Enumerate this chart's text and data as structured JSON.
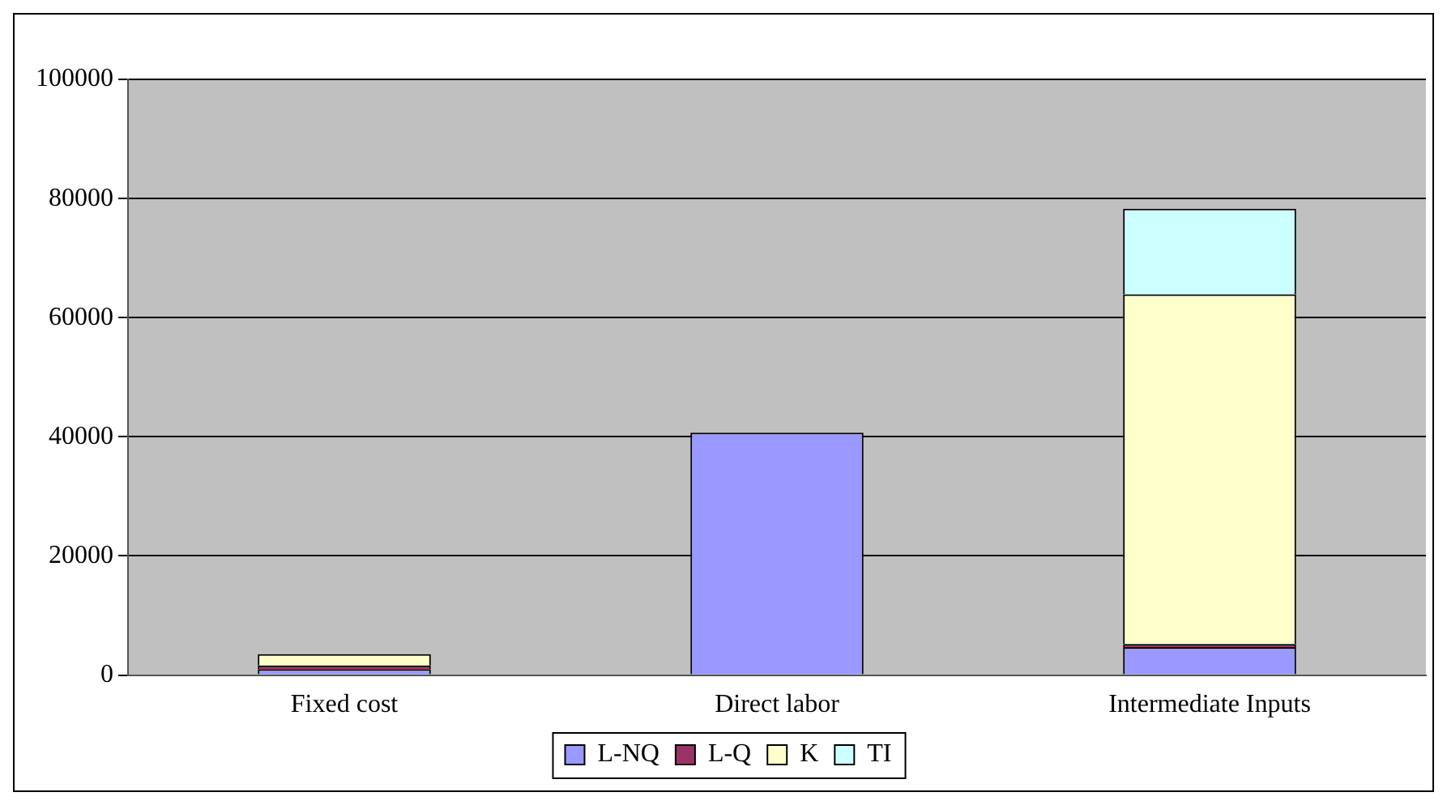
{
  "chart_data": {
    "type": "bar",
    "stacked": true,
    "categories": [
      "Fixed cost",
      "Direct labor",
      "Intermediate Inputs"
    ],
    "series": [
      {
        "name": "L-NQ",
        "color": "#9999ff",
        "values": [
          1000,
          40700,
          4700
        ]
      },
      {
        "name": "L-Q",
        "color": "#993366",
        "values": [
          600,
          null,
          500
        ]
      },
      {
        "name": "K",
        "color": "#ffffcc",
        "values": [
          1900,
          null,
          58700
        ]
      },
      {
        "name": "TI",
        "color": "#ccffff",
        "values": [
          null,
          null,
          14400
        ]
      }
    ],
    "ylim": [
      0,
      100000
    ],
    "yticks": [
      0,
      20000,
      40000,
      60000,
      80000,
      100000
    ],
    "grid": "y",
    "legend": "bottom"
  }
}
